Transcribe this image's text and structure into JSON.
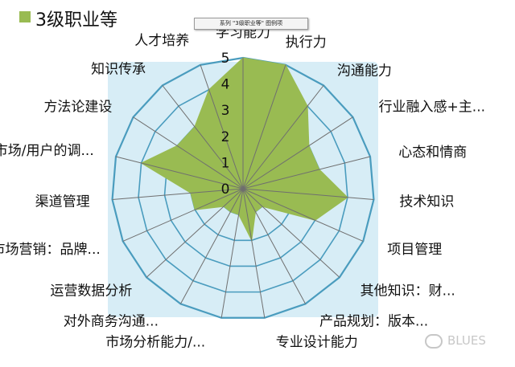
{
  "chart_data": {
    "type": "radar",
    "categories": [
      "学习能力",
      "执行力",
      "沟通能力",
      "行业融入感+主...",
      "心态和情商",
      "技术知识",
      "项目管理",
      "其他知识：财...",
      "产品规划：版本...",
      "专业设计能力",
      "市场分析能力/...",
      "对外商务沟通...",
      "运营数据分析",
      "市场营销：品牌...",
      "渠道管理",
      "市场/用户的调...",
      "方法论建设",
      "知识传承",
      "人才培养"
    ],
    "series": [
      {
        "name": "3级职业等",
        "values": [
          5,
          5,
          4,
          3,
          3,
          4,
          3,
          1,
          1,
          2,
          1,
          1,
          1,
          2,
          2,
          4,
          3,
          3,
          4
        ]
      }
    ],
    "rticks": [
      "0",
      "1",
      "2",
      "3",
      "4",
      "5"
    ],
    "rlim": [
      0,
      5
    ],
    "legend_position": "top-left",
    "tooltip_text": "系列 \"3级职业等\" 图例项"
  },
  "colors": {
    "series": "#99bb52",
    "plot_background": "#d7edf6",
    "grid": "#4a9cbe"
  },
  "watermark_text": "BLUES"
}
